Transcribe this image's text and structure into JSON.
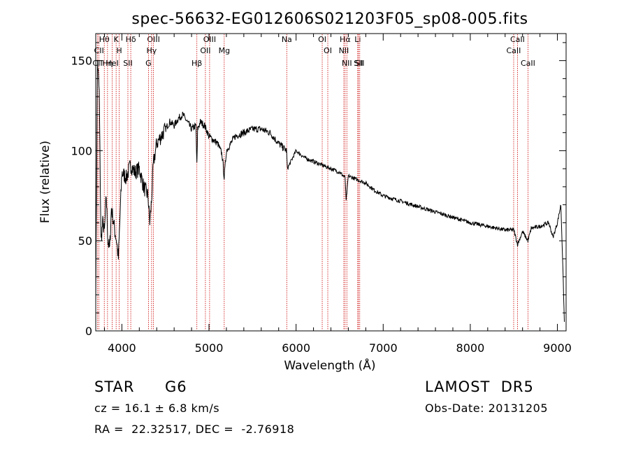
{
  "chart_data": {
    "type": "line",
    "title": "spec-56632-EG012606S021203F05_sp08-005.fits",
    "xlabel": "Wavelength (Å)",
    "ylabel": "Flux (relative)",
    "xlim": [
      3700,
      9100
    ],
    "ylim": [
      0,
      165
    ],
    "xticks": [
      4000,
      5000,
      6000,
      7000,
      8000,
      9000
    ],
    "yticks": [
      0,
      50,
      100,
      150
    ],
    "grid": false,
    "series": [
      {
        "x": [
          3700,
          3720,
          3740,
          3760,
          3780,
          3800,
          3820,
          3840,
          3860,
          3880,
          3900,
          3920,
          3940,
          3960,
          3980,
          4000,
          4050,
          4100,
          4150,
          4200,
          4250,
          4300,
          4320,
          4340,
          4360,
          4380,
          4400,
          4450,
          4500,
          4550,
          4600,
          4650,
          4700,
          4750,
          4800,
          4850,
          4861,
          4870,
          4900,
          4950,
          5000,
          5050,
          5100,
          5150,
          5175,
          5200,
          5300,
          5400,
          5500,
          5600,
          5700,
          5800,
          5890,
          5900,
          6000,
          6100,
          6200,
          6300,
          6400,
          6500,
          6563,
          6575,
          6600,
          6700,
          6800,
          6900,
          7000,
          7200,
          7400,
          7600,
          7800,
          8000,
          8200,
          8400,
          8500,
          8542,
          8600,
          8662,
          8700,
          8800,
          8900,
          8950,
          9000,
          9040,
          9060,
          9080
        ],
        "y": [
          20,
          150,
          132,
          50,
          60,
          55,
          75,
          50,
          45,
          68,
          62,
          55,
          50,
          40,
          65,
          88,
          85,
          92,
          88,
          90,
          80,
          75,
          60,
          72,
          92,
          98,
          104,
          108,
          112,
          116,
          114,
          118,
          120,
          116,
          112,
          114,
          92,
          112,
          116,
          114,
          108,
          106,
          104,
          98,
          85,
          100,
          108,
          110,
          112,
          112,
          110,
          104,
          100,
          90,
          100,
          96,
          94,
          92,
          90,
          88,
          85,
          72,
          86,
          84,
          82,
          78,
          75,
          72,
          69,
          66,
          63,
          60,
          58,
          56,
          56,
          48,
          55,
          50,
          57,
          58,
          60,
          52,
          60,
          70,
          40,
          5
        ]
      }
    ],
    "lines": [
      {
        "label": "Hθ",
        "x": 3798
      },
      {
        "label": "CII",
        "x": 3737
      },
      {
        "label": "CII",
        "x": 3720
      },
      {
        "label": "HeI",
        "x": 3889
      },
      {
        "label": "Hη",
        "x": 3835
      },
      {
        "label": "K",
        "x": 3934
      },
      {
        "label": "H",
        "x": 3969
      },
      {
        "label": "Hδ",
        "x": 4102
      },
      {
        "label": "SII",
        "x": 4069
      },
      {
        "label": "OIII",
        "x": 4363
      },
      {
        "label": "Hγ",
        "x": 4341
      },
      {
        "label": "G",
        "x": 4305
      },
      {
        "label": "OIII",
        "x": 5007
      },
      {
        "label": "OII",
        "x": 4959
      },
      {
        "label": "Hβ",
        "x": 4861
      },
      {
        "label": "Mg",
        "x": 5175
      },
      {
        "label": "Na",
        "x": 5893
      },
      {
        "label": "OI",
        "x": 6300
      },
      {
        "label": "OI",
        "x": 6364
      },
      {
        "label": "Hα",
        "x": 6563
      },
      {
        "label": "NII",
        "x": 6548
      },
      {
        "label": "NII",
        "x": 6583
      },
      {
        "label": "SII",
        "x": 6716
      },
      {
        "label": "Li",
        "x": 6708
      },
      {
        "label": "SII",
        "x": 6731
      },
      {
        "label": "CaII",
        "x": 8542
      },
      {
        "label": "CaII",
        "x": 8498
      },
      {
        "label": "CaII",
        "x": 8662
      }
    ]
  },
  "info": {
    "class": "STAR",
    "subclass": "G6",
    "survey": "LAMOST  DR5",
    "cz": "cz = 16.1 ± 6.8 km/s",
    "obs_date": "Obs-Date: 20131205",
    "radec": "RA =  22.32517, DEC =  -2.76918"
  }
}
